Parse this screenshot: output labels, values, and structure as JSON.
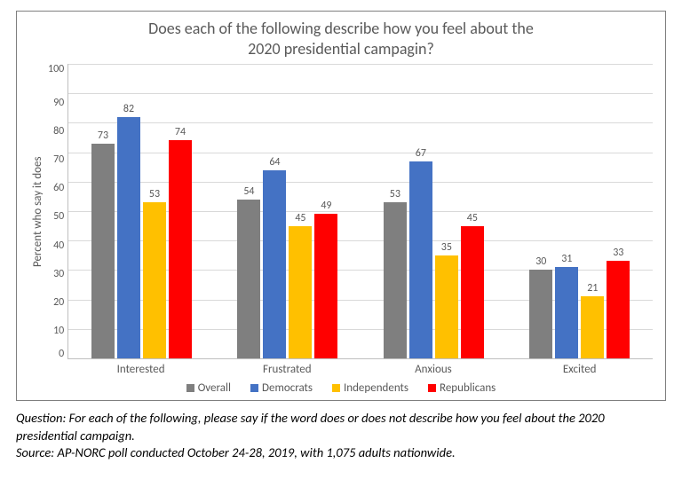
{
  "chart": {
    "type": "bar-grouped",
    "title_line1": "Does each of the following describe how you feel about the",
    "title_line2": "2020 presidential campagin?",
    "title_fontsize": 18,
    "ylabel": "Percent who say it does",
    "label_fontsize": 13,
    "ylim_max": 100,
    "ytick_step": 10,
    "yticks": [
      "100",
      "90",
      "80",
      "70",
      "60",
      "50",
      "40",
      "30",
      "20",
      "10",
      "0"
    ],
    "grid_color": "#d9d9d9",
    "axis_color": "#bfbfbf",
    "background_color": "#ffffff",
    "frame_border_color": "#7f7f7f",
    "categories": [
      "Interested",
      "Frustrated",
      "Anxious",
      "Excited"
    ],
    "series": [
      {
        "name": "Overall",
        "color": "#7f7f7f",
        "values": [
          73,
          54,
          53,
          30
        ]
      },
      {
        "name": "Democrats",
        "color": "#4472c4",
        "values": [
          82,
          64,
          67,
          31
        ]
      },
      {
        "name": "Independents",
        "color": "#ffc000",
        "values": [
          53,
          45,
          35,
          21
        ]
      },
      {
        "name": "Republicans",
        "color": "#ff0000",
        "values": [
          74,
          49,
          45,
          33
        ]
      }
    ],
    "bar_label_fontsize": 12,
    "text_color": "#595959"
  },
  "caption": {
    "line1": "Question:  For each of the following, please say if the word does or does not describe how you feel about the 2020 presidential campaign.",
    "line2": "Source: AP-NORC poll conducted October 24-28, 2019, with 1,075 adults nationwide."
  }
}
